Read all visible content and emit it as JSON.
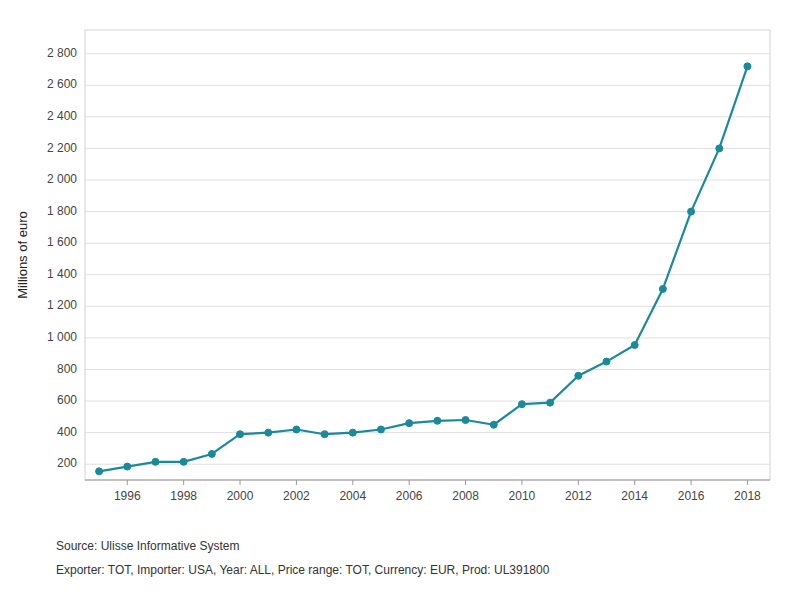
{
  "chart_data": {
    "type": "line",
    "x": [
      1995,
      1996,
      1997,
      1998,
      1999,
      2000,
      2001,
      2002,
      2003,
      2004,
      2005,
      2006,
      2007,
      2008,
      2009,
      2010,
      2011,
      2012,
      2013,
      2014,
      2015,
      2016,
      2017,
      2018
    ],
    "values": [
      155,
      185,
      215,
      215,
      265,
      390,
      400,
      420,
      390,
      400,
      420,
      460,
      475,
      480,
      450,
      580,
      590,
      760,
      850,
      955,
      1310,
      1800,
      2200,
      2720
    ],
    "color": "#1a8a9a",
    "marker": "circle",
    "ylabel": "Millions of euro",
    "xlim": [
      1994.5,
      2018.8
    ],
    "xticks": [
      1996,
      1998,
      2000,
      2002,
      2004,
      2006,
      2008,
      2010,
      2012,
      2014,
      2016,
      2018
    ],
    "ylim": [
      100,
      2950
    ],
    "yticks": [
      200,
      400,
      600,
      800,
      {
        "value": 1000,
        "label": "1 000"
      },
      {
        "value": 1200,
        "label": "1 200"
      },
      {
        "value": 1400,
        "label": "1 400"
      },
      {
        "value": 1600,
        "label": "1 600"
      },
      {
        "value": 1800,
        "label": "1 800"
      },
      {
        "value": 2000,
        "label": "2 000"
      },
      {
        "value": 2200,
        "label": "2 200"
      },
      {
        "value": 2400,
        "label": "2 400"
      },
      {
        "value": 2600,
        "label": "2 600"
      },
      {
        "value": 2800,
        "label": "2 800"
      }
    ],
    "grid": true,
    "annotations": [
      "Source: Ulisse Informative System",
      "Exporter: TOT, Importer: USA, Year: ALL, Price range: TOT, Currency: EUR, Prod: UL391800"
    ]
  }
}
